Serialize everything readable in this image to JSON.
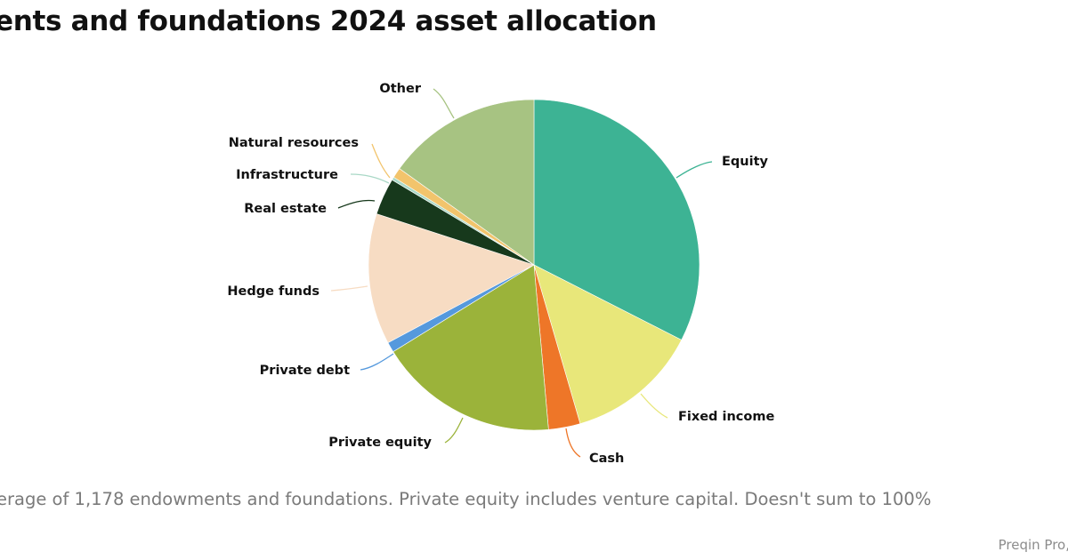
{
  "chart_data": {
    "type": "pie",
    "title": "ents and foundations 2024 asset allocation",
    "categories": [
      "Equity",
      "Fixed income",
      "Cash",
      "Private equity",
      "Private debt",
      "Hedge funds",
      "Real estate",
      "Infrastructure",
      "Natural resources",
      "Other"
    ],
    "values": [
      32.5,
      13.0,
      3.1,
      17.6,
      1.0,
      12.8,
      3.6,
      0.3,
      1.0,
      15.1
    ],
    "unit": "%",
    "colors": [
      "#3db394",
      "#e8e77a",
      "#ee7628",
      "#9bb33a",
      "#5599dd",
      "#f7dcc3",
      "#17391c",
      "#a9d8c6",
      "#f2c46c",
      "#a7c382"
    ],
    "start_angle_deg": 0,
    "direction": "clockwise",
    "legend": "callout labels",
    "note": "erage of 1,178 endowments and foundations. Private equity includes venture capital. Doesn't sum to 100%",
    "source": "Preqin Pro,"
  },
  "header": {
    "title": "ents and foundations 2024 asset allocation"
  },
  "labels": {
    "equity": "Equity",
    "fixed_income": "Fixed income",
    "cash": "Cash",
    "private_equity": "Private equity",
    "private_debt": "Private debt",
    "hedge_funds": "Hedge funds",
    "real_estate": "Real estate",
    "infrastructure": "Infrastructure",
    "natural_resources": "Natural resources",
    "other": "Other"
  },
  "footer": {
    "note": "erage of 1,178 endowments and foundations. Private equity includes venture capital. Doesn't sum to 100%",
    "source": "Preqin Pro,"
  }
}
